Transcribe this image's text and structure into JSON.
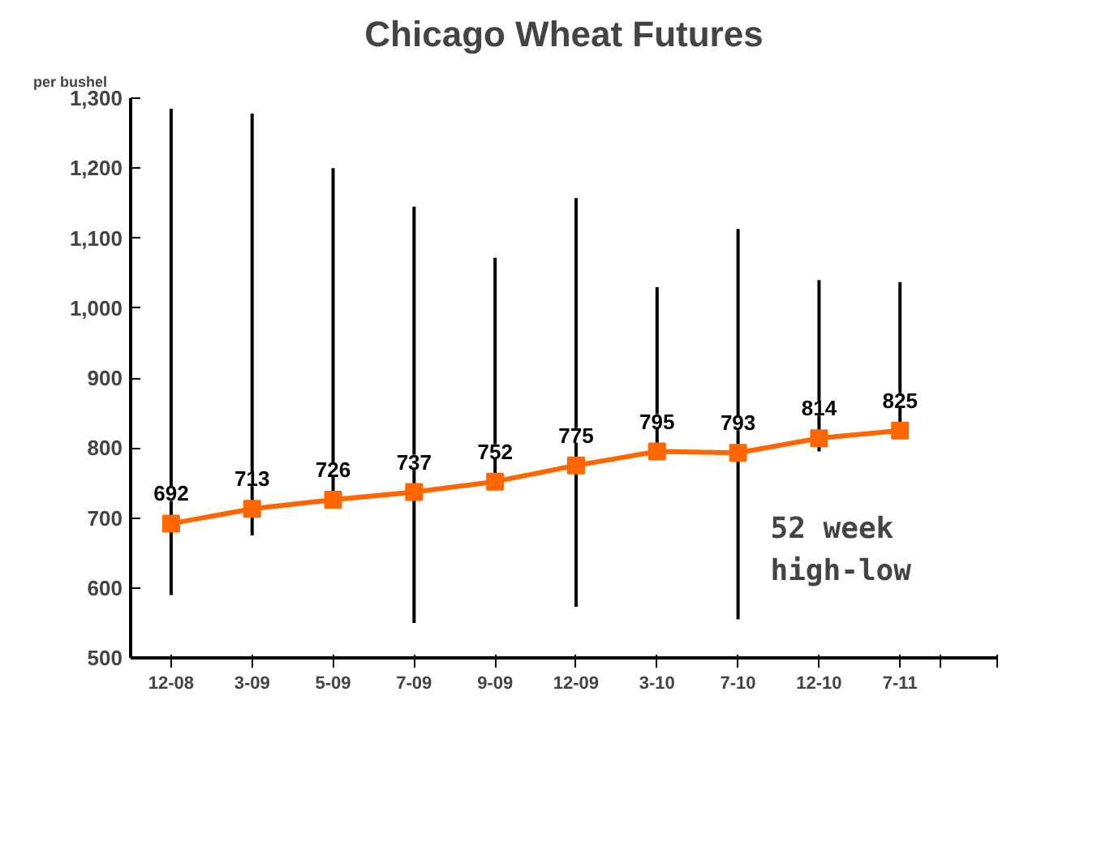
{
  "chart_data": {
    "type": "line",
    "title": "Chicago Wheat Futures",
    "ylabel": "per bushel",
    "categories": [
      "12-08",
      "3-09",
      "5-09",
      "7-09",
      "9-09",
      "12-09",
      "3-10",
      "7-10",
      "12-10",
      "7-11"
    ],
    "ylim": [
      500,
      1300
    ],
    "yticks": [
      {
        "value": 500,
        "label": "500"
      },
      {
        "value": 600,
        "label": "600"
      },
      {
        "value": 700,
        "label": "700"
      },
      {
        "value": 800,
        "label": "800"
      },
      {
        "value": 900,
        "label": "900"
      },
      {
        "value": 1000,
        "label": "1,000"
      },
      {
        "value": 1100,
        "label": "1,100"
      },
      {
        "value": 1200,
        "label": "1,200"
      },
      {
        "value": 1300,
        "label": "1,300"
      }
    ],
    "series": [
      {
        "type": "bar",
        "color": "#000000",
        "base": [
          590,
          675,
          725,
          550,
          752,
          573,
          795,
          555,
          795,
          825
        ],
        "values": [
          695,
          603,
          475,
          595,
          320,
          584,
          235,
          558,
          245,
          212
        ]
      },
      {
        "color": "#ff6600",
        "marker": "square",
        "values": [
          692,
          713,
          726,
          737,
          752,
          775,
          795,
          793,
          814,
          825
        ],
        "value_labels": [
          "692",
          "713",
          "726",
          "737",
          "752",
          "775",
          "795",
          "793",
          "814",
          "825"
        ]
      }
    ],
    "annotations": [
      "52 week\nhigh-low"
    ],
    "grid": false
  }
}
